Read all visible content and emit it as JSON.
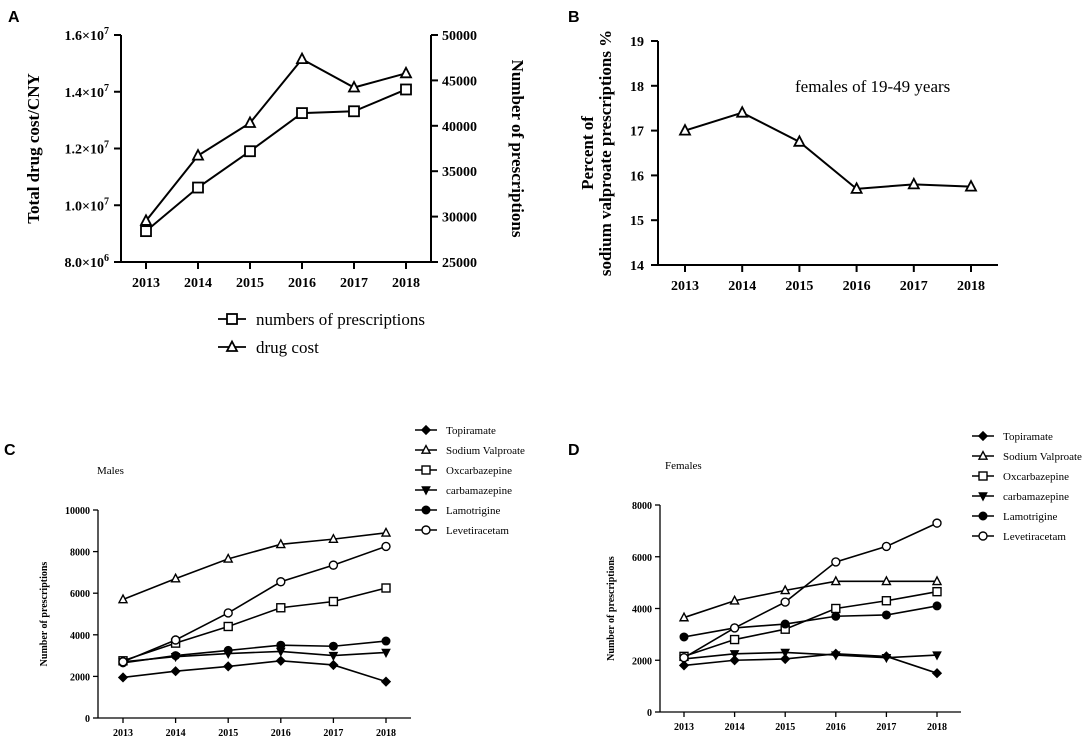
{
  "figure": {
    "panels": [
      {
        "letter": "A"
      },
      {
        "letter": "B"
      },
      {
        "letter": "C"
      },
      {
        "letter": "D"
      }
    ]
  },
  "chart_data": [
    {
      "id": "A",
      "type": "line",
      "title": "",
      "x": [
        "2013",
        "2014",
        "2015",
        "2016",
        "2017",
        "2018"
      ],
      "ylabel_left": "Total drug cost/CNY",
      "ylabel_right": "Number of prescriptions",
      "ylim_left": [
        8000000,
        16000000
      ],
      "ylim_right": [
        25000,
        50000
      ],
      "yticks_left": [
        8000000,
        10000000,
        12000000,
        14000000,
        16000000
      ],
      "yticks_left_labels": [
        {
          "mantissa": "8.0×10",
          "exp": "6"
        },
        {
          "mantissa": "1.0×10",
          "exp": "7"
        },
        {
          "mantissa": "1.2×10",
          "exp": "7"
        },
        {
          "mantissa": "1.4×10",
          "exp": "7"
        },
        {
          "mantissa": "1.6×10",
          "exp": "7"
        }
      ],
      "yticks_right": [
        25000,
        30000,
        35000,
        40000,
        45000,
        50000
      ],
      "series": [
        {
          "name": "numbers of prescriptions",
          "marker": "square",
          "axis": "right",
          "values": [
            28400,
            33200,
            37200,
            41400,
            41600,
            44000
          ]
        },
        {
          "name": "drug cost",
          "marker": "triangle",
          "axis": "left",
          "values": [
            9450000,
            11750000,
            12900000,
            15150000,
            14150000,
            14650000
          ]
        }
      ],
      "legend": "bottom"
    },
    {
      "id": "B",
      "type": "line",
      "x": [
        "2013",
        "2014",
        "2015",
        "2016",
        "2017",
        "2018"
      ],
      "ylabel_line1": "Percent of",
      "ylabel_line2": "sodium valproate prescriptions %",
      "ylim": [
        14,
        19
      ],
      "yticks": [
        14,
        15,
        16,
        17,
        18,
        19
      ],
      "annotation": "females of 19-49 years",
      "series": [
        {
          "name": "females of 19-49 years",
          "marker": "triangle",
          "values": [
            17.0,
            17.4,
            16.75,
            15.7,
            15.8,
            15.75
          ]
        }
      ]
    },
    {
      "id": "C",
      "type": "line",
      "title": "Males",
      "x": [
        "2013",
        "2014",
        "2015",
        "2016",
        "2017",
        "2018"
      ],
      "ylabel": "Number of prescriptions",
      "ylim": [
        0,
        10000
      ],
      "yticks": [
        0,
        2000,
        4000,
        6000,
        8000,
        10000
      ],
      "legend": "top-right",
      "series": [
        {
          "name": "Topiramate",
          "marker": "diamond-filled",
          "values": [
            1950,
            2250,
            2480,
            2750,
            2550,
            1750
          ]
        },
        {
          "name": "Sodium Valproate",
          "marker": "triangle",
          "values": [
            5700,
            6700,
            7650,
            8350,
            8600,
            8900
          ]
        },
        {
          "name": "Oxcarbazepine",
          "marker": "square",
          "values": [
            2750,
            3600,
            4400,
            5300,
            5600,
            6250
          ]
        },
        {
          "name": "carbamazepine",
          "marker": "triangle-down-filled",
          "values": [
            2700,
            2950,
            3100,
            3200,
            3000,
            3150
          ]
        },
        {
          "name": "Lamotrigine",
          "marker": "circle-filled",
          "values": [
            2650,
            3000,
            3250,
            3500,
            3450,
            3700
          ]
        },
        {
          "name": "Levetiracetam",
          "marker": "circle",
          "values": [
            2700,
            3750,
            5050,
            6550,
            7350,
            8250
          ]
        }
      ]
    },
    {
      "id": "D",
      "type": "line",
      "title": "Females",
      "x": [
        "2013",
        "2014",
        "2015",
        "2016",
        "2017",
        "2018"
      ],
      "ylabel": "Number of prescriptions",
      "ylim": [
        0,
        8000
      ],
      "yticks": [
        0,
        2000,
        4000,
        6000,
        8000
      ],
      "legend": "top-right",
      "series": [
        {
          "name": "Topiramate",
          "marker": "diamond-filled",
          "values": [
            1800,
            2000,
            2050,
            2250,
            2150,
            1500
          ]
        },
        {
          "name": "Sodium Valproate",
          "marker": "triangle",
          "values": [
            3650,
            4300,
            4700,
            5050,
            5050,
            5050
          ]
        },
        {
          "name": "Oxcarbazepine",
          "marker": "square",
          "values": [
            2150,
            2800,
            3200,
            4000,
            4300,
            4650
          ]
        },
        {
          "name": "carbamazepine",
          "marker": "triangle-down-filled",
          "values": [
            2050,
            2250,
            2300,
            2200,
            2100,
            2200
          ]
        },
        {
          "name": "Lamotrigine",
          "marker": "circle-filled",
          "values": [
            2900,
            3250,
            3400,
            3700,
            3750,
            4100
          ]
        },
        {
          "name": "Levetiracetam",
          "marker": "circle",
          "values": [
            2100,
            3250,
            4250,
            5800,
            6400,
            7300
          ]
        }
      ]
    }
  ]
}
